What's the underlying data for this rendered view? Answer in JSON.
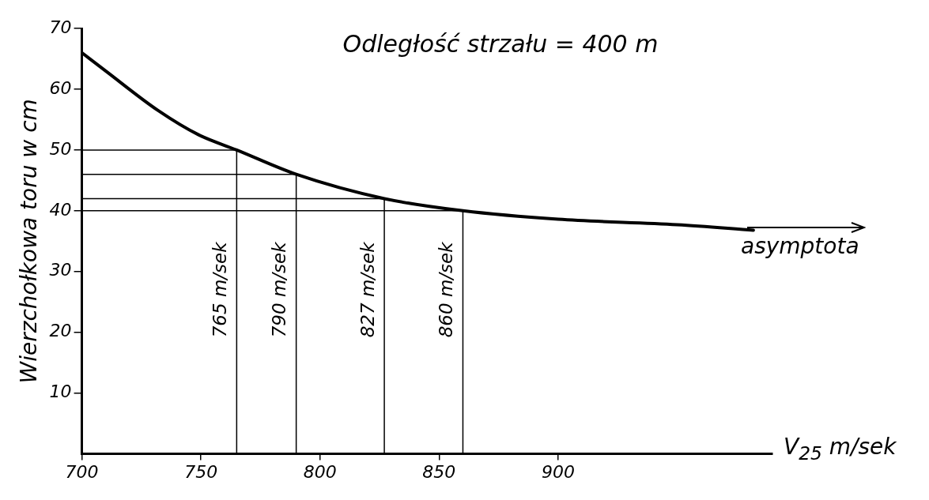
{
  "chart_data": {
    "type": "line",
    "xlabel": "V$_{25}$ m/sek",
    "ylabel": "Wierzchołkowa toru w cm",
    "annotations": [
      "Odległość strzału = 400 m",
      "asymptota"
    ],
    "x": [
      700,
      710,
      732,
      749,
      765,
      790,
      827,
      860,
      900,
      950,
      982
    ],
    "series": [
      {
        "color": "#000000",
        "values": [
          66,
          63,
          56.5,
          52.5,
          50,
          46,
          42,
          40,
          38.6,
          37.7,
          36.8
        ]
      }
    ],
    "xlim": [
      700,
      990
    ],
    "xticks": [
      700,
      750,
      800,
      850,
      900
    ],
    "ylim": [
      0,
      70
    ],
    "yticks": [
      10,
      20,
      30,
      40,
      50,
      60,
      70
    ],
    "ref_lines": [
      {
        "axis": "x",
        "value": 765,
        "label": "765 m/sek"
      },
      {
        "axis": "x",
        "value": 790,
        "label": "790 m/sek"
      },
      {
        "axis": "x",
        "value": 827,
        "label": "827 m/sek"
      },
      {
        "axis": "x",
        "value": 860,
        "label": "860 m/sek"
      },
      {
        "axis": "y",
        "value": 50,
        "label": null
      },
      {
        "axis": "y",
        "value": 46,
        "label": null
      },
      {
        "axis": "y",
        "value": 42,
        "label": null
      },
      {
        "axis": "y",
        "value": 40,
        "label": null
      }
    ],
    "grid": false,
    "legend": false,
    "marker": "none",
    "line_style": "solid"
  }
}
